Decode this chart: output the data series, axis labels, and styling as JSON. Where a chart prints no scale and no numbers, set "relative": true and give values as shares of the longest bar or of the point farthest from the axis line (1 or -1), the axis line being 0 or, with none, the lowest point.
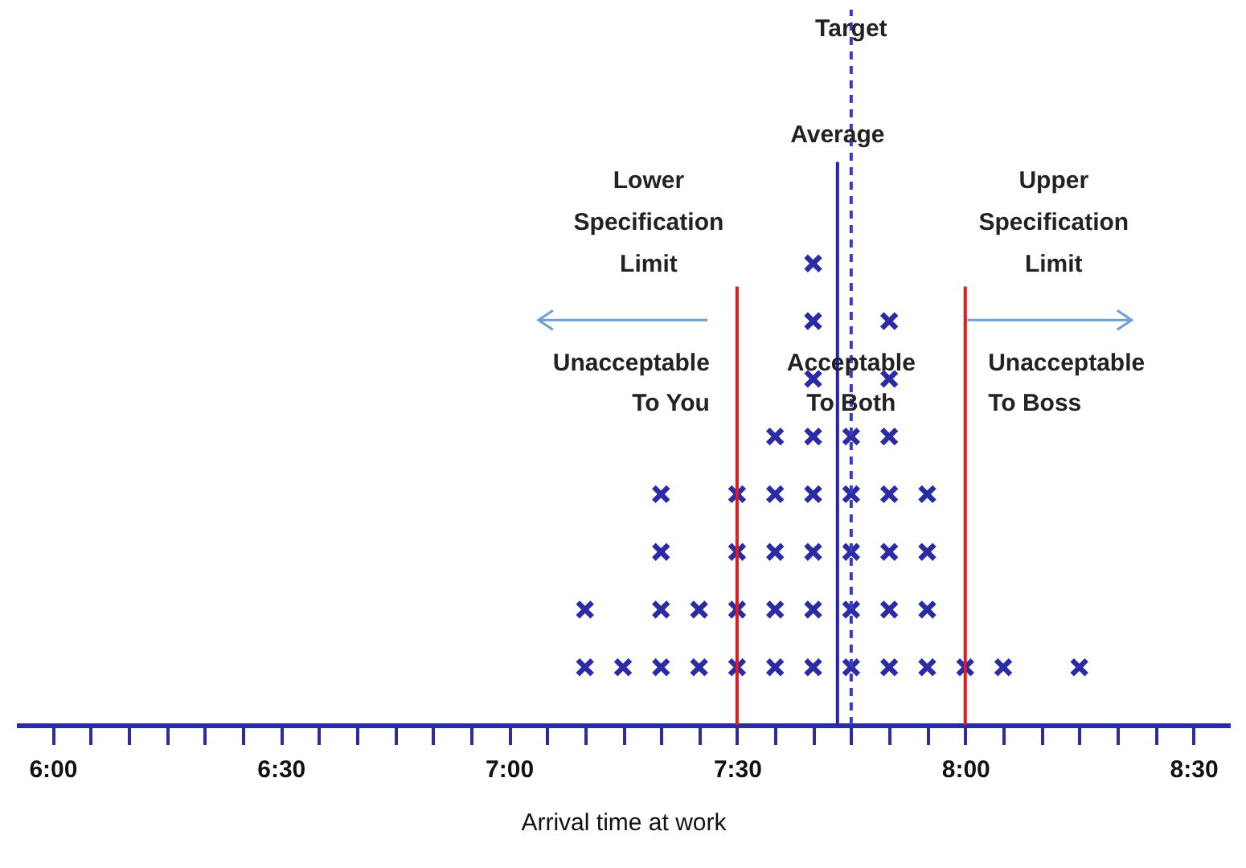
{
  "chart_data": {
    "type": "scatter",
    "relative": true,
    "marker": "cross",
    "xlabel": "Arrival time at work",
    "xlim": [
      5.92,
      8.58
    ],
    "xticks": [
      {
        "value": 6,
        "label": "6:00"
      },
      {
        "value": 6.0833,
        "label": null
      },
      {
        "value": 6.1667,
        "label": null
      },
      {
        "value": 6.25,
        "label": null
      },
      {
        "value": 6.3333,
        "label": null
      },
      {
        "value": 6.4167,
        "label": null
      },
      {
        "value": 6.5,
        "label": "6:30"
      },
      {
        "value": 6.5833,
        "label": null
      },
      {
        "value": 6.6667,
        "label": null
      },
      {
        "value": 6.75,
        "label": null
      },
      {
        "value": 6.8333,
        "label": null
      },
      {
        "value": 6.9167,
        "label": null
      },
      {
        "value": 7,
        "label": "7:00"
      },
      {
        "value": 7.0833,
        "label": null
      },
      {
        "value": 7.1667,
        "label": null
      },
      {
        "value": 7.25,
        "label": null
      },
      {
        "value": 7.3333,
        "label": null
      },
      {
        "value": 7.4167,
        "label": null
      },
      {
        "value": 7.5,
        "label": "7:30"
      },
      {
        "value": 7.5833,
        "label": null
      },
      {
        "value": 7.6667,
        "label": null
      },
      {
        "value": 7.75,
        "label": null
      },
      {
        "value": 7.8333,
        "label": null
      },
      {
        "value": 7.9167,
        "label": null
      },
      {
        "value": 8,
        "label": "8:00"
      },
      {
        "value": 8.0833,
        "label": null
      },
      {
        "value": 8.1667,
        "label": null
      },
      {
        "value": 8.25,
        "label": null
      },
      {
        "value": 8.3333,
        "label": null
      },
      {
        "value": 8.4167,
        "label": null
      },
      {
        "value": 8.5,
        "label": "8:30"
      }
    ],
    "series": [
      {
        "color": "#2b2ba6",
        "x": [
          7.1667,
          7.1667,
          7.25,
          7.3333,
          7.3333,
          7.3333,
          7.3333,
          7.4167,
          7.4167,
          7.5,
          7.5,
          7.5,
          7.5,
          7.5833,
          7.5833,
          7.5833,
          7.5833,
          7.5833,
          7.6667,
          7.6667,
          7.6667,
          7.6667,
          7.6667,
          7.6667,
          7.6667,
          7.6667,
          7.75,
          7.75,
          7.75,
          7.75,
          7.75,
          7.8333,
          7.8333,
          7.8333,
          7.8333,
          7.8333,
          7.8333,
          7.8333,
          7.9167,
          7.9167,
          7.9167,
          7.9167,
          8,
          8.0833,
          8.25
        ],
        "values": [
          0.125,
          0.25,
          0.125,
          0.125,
          0.25,
          0.375,
          0.5,
          0.125,
          0.25,
          0.125,
          0.25,
          0.375,
          0.5,
          0.125,
          0.25,
          0.375,
          0.5,
          0.625,
          0.125,
          0.25,
          0.375,
          0.5,
          0.625,
          0.75,
          0.875,
          1,
          0.125,
          0.25,
          0.375,
          0.5,
          0.625,
          0.125,
          0.25,
          0.375,
          0.5,
          0.625,
          0.75,
          0.875,
          0.125,
          0.25,
          0.375,
          0.5,
          0.125,
          0.125,
          0.125
        ]
      }
    ],
    "ref_lines": [
      {
        "axis": "x",
        "value": 7.5,
        "label": "Lower\nSpecification\nLimit",
        "color": "#e31a1c"
      },
      {
        "axis": "x",
        "value": 7.75,
        "label": "Target",
        "color": "#3a3acc",
        "line_style": "dashed"
      },
      {
        "axis": "x",
        "value": 7.72,
        "label": "Average",
        "color": "#2424a8"
      },
      {
        "axis": "x",
        "value": 8,
        "label": "Upper\nSpecification\nLimit",
        "color": "#e31a1c"
      }
    ],
    "annotations": [
      "Unacceptable\nTo You",
      "Acceptable\nTo Both",
      "Unacceptable\nTo Boss"
    ]
  }
}
